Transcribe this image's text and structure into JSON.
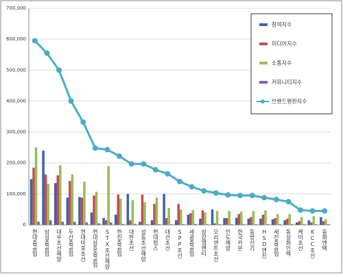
{
  "chart_data": {
    "type": "bar_line",
    "categories": [
      "현대중공업",
      "삼성중공업",
      "대우조선해양",
      "두산중공업",
      "현대미포조선",
      "현대삼호중공업",
      "STX조선해양",
      "한진중공업",
      "대한조선",
      "성동조선해양",
      "현대힘스",
      "대선조선",
      "SPP조선",
      "세광중공업",
      "삼강엠앤티",
      "오리엔트조선",
      "인도해양",
      "한국카본",
      "동방선기",
      "HSD엔진",
      "세진중공업",
      "동성화인텍",
      "케이조선",
      "KCC조선",
      "동화엔텍"
    ],
    "series": [
      {
        "name": "참여지수",
        "color": "#3d63a8",
        "kind": "bar",
        "values": [
          148000,
          240000,
          135000,
          88000,
          90000,
          40000,
          22000,
          33000,
          100000,
          10000,
          15000,
          100000,
          15000,
          33000,
          20000,
          50000,
          22000,
          23000,
          20000,
          20000,
          18000,
          15000,
          8000,
          15000,
          25000
        ]
      },
      {
        "name": "미디어지수",
        "color": "#c0504d",
        "kind": "bar",
        "values": [
          185000,
          163000,
          160000,
          142000,
          88000,
          95000,
          15000,
          98000,
          15000,
          98000,
          68000,
          22000,
          68000,
          38000,
          47000,
          5000,
          22000,
          35000,
          25000,
          33000,
          22000,
          20000,
          12000,
          8000,
          12000
        ]
      },
      {
        "name": "소통지수",
        "color": "#9bbb59",
        "kind": "bar",
        "values": [
          250000,
          133000,
          193000,
          163000,
          140000,
          107000,
          190000,
          85000,
          80000,
          73000,
          88000,
          55000,
          50000,
          48000,
          40000,
          45000,
          45000,
          43000,
          45000,
          47000,
          35000,
          35000,
          25000,
          28000,
          18000
        ]
      },
      {
        "name": "커뮤니티지수",
        "color": "#8064a2",
        "kind": "bar",
        "values": [
          10000,
          15000,
          10000,
          10000,
          8000,
          5000,
          8000,
          3000,
          3000,
          2000,
          2000,
          2000,
          2000,
          3000,
          2000,
          2000,
          2000,
          2000,
          2000,
          2000,
          2000,
          2000,
          2000,
          2000,
          2000
        ]
      },
      {
        "name": "브랜드평판지수",
        "color": "#4bacc6",
        "kind": "line",
        "values": [
          595000,
          555000,
          500000,
          400000,
          332000,
          248000,
          243000,
          222000,
          197000,
          197000,
          178000,
          165000,
          140000,
          123000,
          110000,
          103000,
          97000,
          95000,
          95000,
          88000,
          82000,
          75000,
          48000,
          45000,
          45000
        ]
      }
    ],
    "ylim": [
      0,
      700000
    ],
    "yticks": [
      0,
      {
        "value": 100000,
        "label": "100,000"
      },
      {
        "value": 200000,
        "label": "200,000"
      },
      {
        "value": 300000,
        "label": "300,000"
      },
      {
        "value": 400000,
        "label": "400,000"
      },
      {
        "value": 500000,
        "label": "500,000"
      },
      {
        "value": 600000,
        "label": "600,000"
      },
      {
        "value": 700000,
        "label": "700,000"
      }
    ],
    "grid": true,
    "legend": "top-right"
  }
}
